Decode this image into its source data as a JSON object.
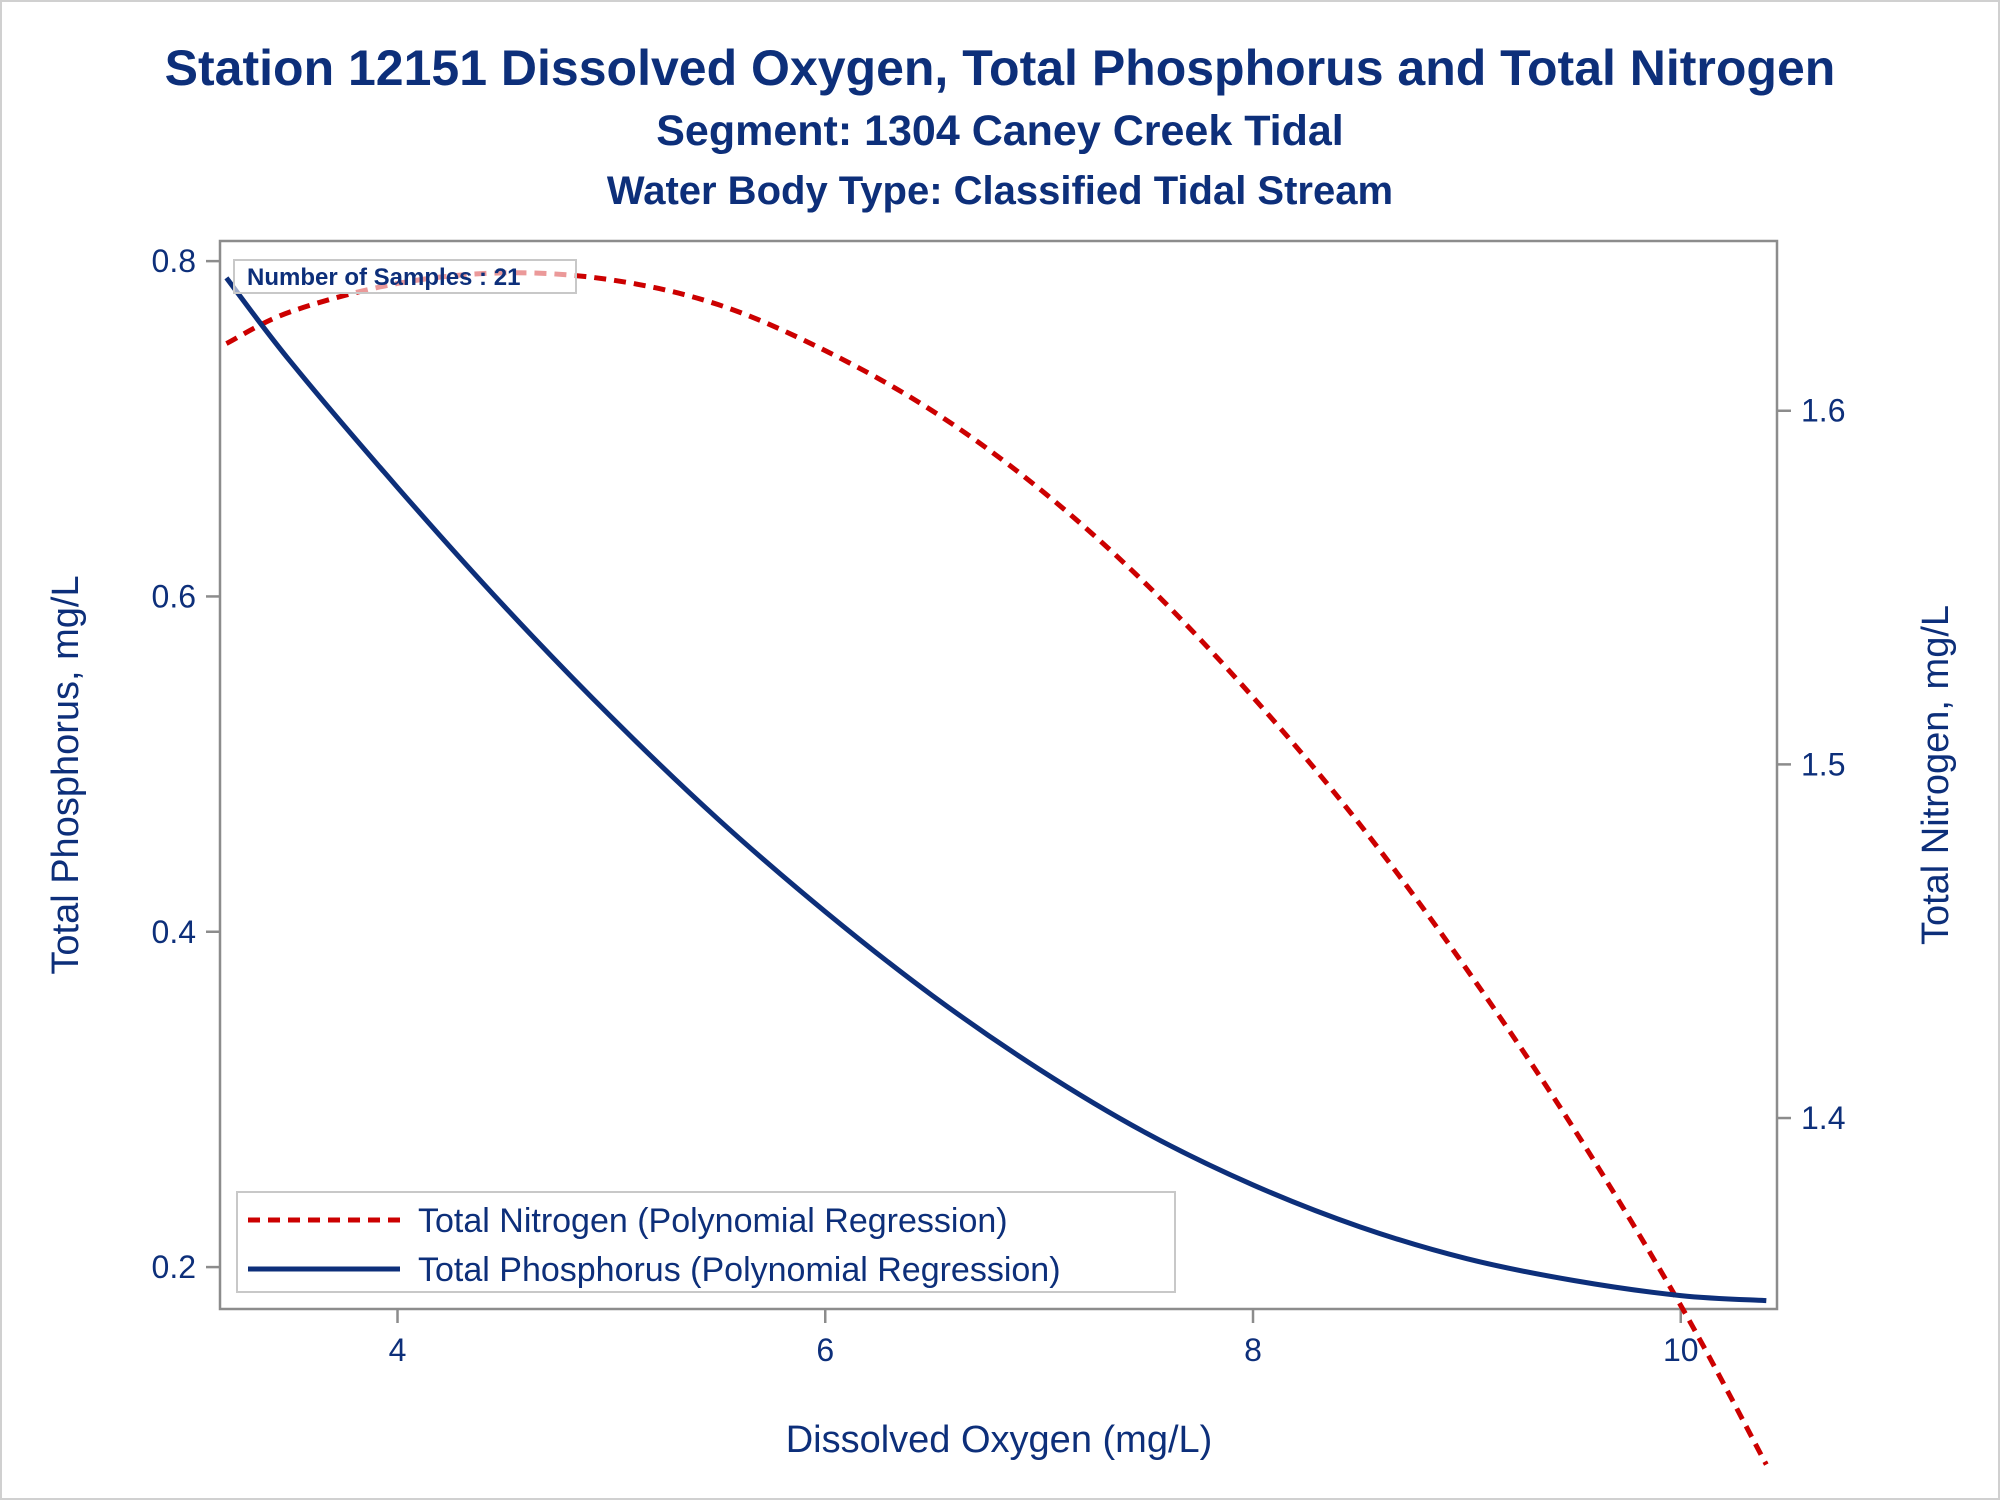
{
  "chart_data": {
    "type": "line",
    "title": "Station 12151  Dissolved Oxygen, Total Phosphorus and Total Nitrogen",
    "subtitle": "Segment: 1304  Caney Creek Tidal",
    "subtitle2": "Water Body Type: Classified Tidal Stream",
    "xlabel": "Dissolved Oxygen (mg/L)",
    "ylabel": "Total Phosphorus, mg/L",
    "y2label": "Total Nitrogen, mg/L",
    "xlim": [
      3.17,
      10.45
    ],
    "ylim": [
      0.175,
      0.812
    ],
    "y2lim": [
      1.346,
      1.648
    ],
    "xticks": [
      "4",
      "6",
      "8",
      "10"
    ],
    "xtick_values": [
      4,
      6,
      8,
      10
    ],
    "yticks": [
      "0.2",
      "0.4",
      "0.6",
      "0.8"
    ],
    "ytick_values": [
      0.2,
      0.4,
      0.6,
      0.8
    ],
    "y2ticks": [
      "1.4",
      "1.5",
      "1.6"
    ],
    "y2tick_values": [
      1.4,
      1.5,
      1.6
    ],
    "annotation": "Number of Samples : 21",
    "legend_position": "bottom-left",
    "grid": false,
    "series": [
      {
        "name": "Total Nitrogen (Polynomial Regression)",
        "axis": "y2",
        "color": "#cc0000",
        "style": "dashed",
        "x": [
          3.2,
          3.5,
          4.0,
          4.5,
          5.0,
          5.5,
          6.0,
          6.5,
          7.0,
          7.5,
          8.0,
          8.5,
          9.0,
          9.5,
          10.0,
          10.4
        ],
        "values": [
          1.619,
          1.628,
          1.636,
          1.639,
          1.637,
          1.63,
          1.617,
          1.6,
          1.578,
          1.551,
          1.519,
          1.483,
          1.442,
          1.397,
          1.347,
          1.302
        ]
      },
      {
        "name": "Total Phosphorus (Polynomial Regression)",
        "axis": "y",
        "color": "#0d2f7a",
        "style": "solid",
        "x": [
          3.2,
          3.5,
          4.0,
          4.5,
          5.0,
          5.5,
          6.0,
          6.5,
          7.0,
          7.5,
          8.0,
          8.5,
          9.0,
          9.5,
          10.0,
          10.4
        ],
        "values": [
          0.79,
          0.74,
          0.665,
          0.594,
          0.528,
          0.467,
          0.412,
          0.362,
          0.318,
          0.28,
          0.249,
          0.224,
          0.205,
          0.192,
          0.183,
          0.18
        ]
      }
    ]
  }
}
